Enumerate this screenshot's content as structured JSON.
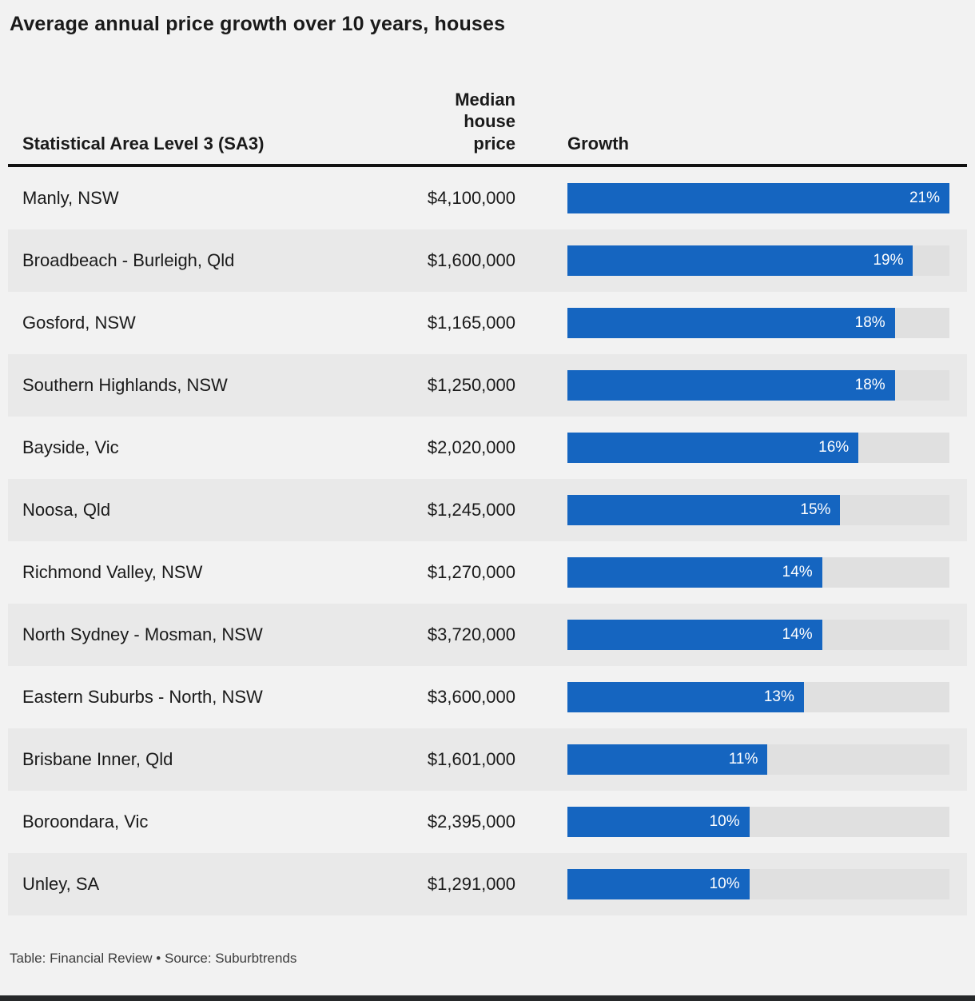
{
  "title": "Average annual price growth over 10 years, houses",
  "footer": "Table: Financial Review • Source: Suburbtrends",
  "columns": {
    "area": "Statistical Area Level 3 (SA3)",
    "price": "Median house price",
    "growth": "Growth"
  },
  "colors": {
    "page_bg": "#f2f2f2",
    "row_bg": "#f2f2f2",
    "row_alt_bg": "#e9e9e9",
    "track": "#e0e0e0",
    "bar": "#1565c0",
    "header_border": "#111111",
    "text": "#1a1a1a",
    "bottom_bar": "#26282a"
  },
  "chart_data": {
    "type": "bar",
    "orientation": "horizontal",
    "title": "Average annual price growth over 10 years, houses",
    "categories": [
      "Manly, NSW",
      "Broadbeach - Burleigh, Qld",
      "Gosford, NSW",
      "Southern Highlands, NSW",
      "Bayside, Vic",
      "Noosa, Qld",
      "Richmond Valley, NSW",
      "North Sydney - Mosman, NSW",
      "Eastern Suburbs - North, NSW",
      "Brisbane Inner, Qld",
      "Boroondara, Vic",
      "Unley, SA"
    ],
    "series": [
      {
        "name": "Growth (%)",
        "values": [
          21,
          19,
          18,
          18,
          16,
          15,
          14,
          14,
          13,
          11,
          10,
          10
        ]
      },
      {
        "name": "Median house price",
        "values": [
          "$4,100,000",
          "$1,600,000",
          "$1,165,000",
          "$1,250,000",
          "$2,020,000",
          "$1,245,000",
          "$1,270,000",
          "$3,720,000",
          "$3,600,000",
          "$1,601,000",
          "$2,395,000",
          "$1,291,000"
        ]
      }
    ],
    "xlabel": "Growth",
    "ylabel": "Statistical Area Level 3 (SA3)",
    "xlim": [
      0,
      21
    ],
    "grid": false,
    "legend": false,
    "bar_color": "#1565c0"
  },
  "max_growth": 21,
  "rows": [
    {
      "area": "Manly, NSW",
      "price": "$4,100,000",
      "growth": 21,
      "growth_label": "21%"
    },
    {
      "area": "Broadbeach - Burleigh, Qld",
      "price": "$1,600,000",
      "growth": 19,
      "growth_label": "19%"
    },
    {
      "area": "Gosford, NSW",
      "price": "$1,165,000",
      "growth": 18,
      "growth_label": "18%"
    },
    {
      "area": "Southern Highlands, NSW",
      "price": "$1,250,000",
      "growth": 18,
      "growth_label": "18%"
    },
    {
      "area": "Bayside, Vic",
      "price": "$2,020,000",
      "growth": 16,
      "growth_label": "16%"
    },
    {
      "area": "Noosa, Qld",
      "price": "$1,245,000",
      "growth": 15,
      "growth_label": "15%"
    },
    {
      "area": "Richmond Valley, NSW",
      "price": "$1,270,000",
      "growth": 14,
      "growth_label": "14%"
    },
    {
      "area": "North Sydney - Mosman, NSW",
      "price": "$3,720,000",
      "growth": 14,
      "growth_label": "14%"
    },
    {
      "area": "Eastern Suburbs - North, NSW",
      "price": "$3,600,000",
      "growth": 13,
      "growth_label": "13%"
    },
    {
      "area": "Brisbane Inner, Qld",
      "price": "$1,601,000",
      "growth": 11,
      "growth_label": "11%"
    },
    {
      "area": "Boroondara, Vic",
      "price": "$2,395,000",
      "growth": 10,
      "growth_label": "10%"
    },
    {
      "area": "Unley, SA",
      "price": "$1,291,000",
      "growth": 10,
      "growth_label": "10%"
    }
  ]
}
